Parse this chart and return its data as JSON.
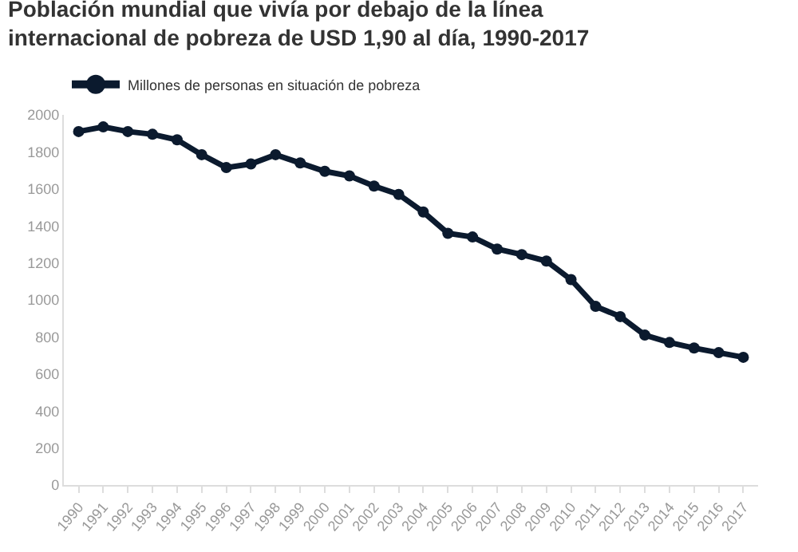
{
  "chart_data": {
    "type": "line",
    "title": "Población mundial que vivía por debajo de la línea internacional de pobreza de USD 1,90 al día, 1990-2017",
    "categories": [
      "1990",
      "1991",
      "1992",
      "1993",
      "1994",
      "1995",
      "1996",
      "1997",
      "1998",
      "1999",
      "2000",
      "2001",
      "2002",
      "2003",
      "2004",
      "2005",
      "2006",
      "2007",
      "2008",
      "2009",
      "2010",
      "2011",
      "2012",
      "2013",
      "2014",
      "2015",
      "2016",
      "2017"
    ],
    "series": [
      {
        "name": "Millones de personas en situación de pobreza",
        "color": "#0b1a2e",
        "values": [
          1910,
          1935,
          1910,
          1895,
          1865,
          1785,
          1715,
          1735,
          1785,
          1740,
          1695,
          1670,
          1615,
          1570,
          1475,
          1360,
          1340,
          1275,
          1245,
          1210,
          1110,
          965,
          910,
          810,
          770,
          740,
          715,
          690
        ]
      }
    ],
    "ylim": [
      0,
      2000
    ],
    "yticks": [
      0,
      200,
      400,
      600,
      800,
      1000,
      1200,
      1400,
      1600,
      1800,
      2000
    ],
    "grid": false,
    "legend": "top left",
    "marker": "circle",
    "line_style": "solid"
  }
}
